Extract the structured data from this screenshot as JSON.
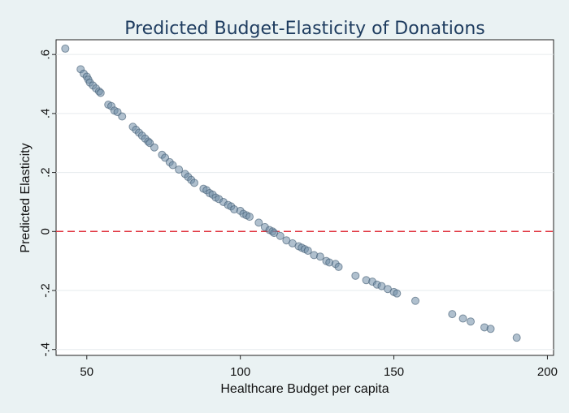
{
  "chart_data": {
    "type": "scatter",
    "title": "Predicted Budget-Elasticity of Donations",
    "xlabel": "Healthcare Budget per capita",
    "ylabel": "Predicted Elasticity",
    "xlim": [
      40,
      202
    ],
    "ylim": [
      -0.42,
      0.65
    ],
    "x_ticks": [
      50,
      100,
      150,
      200
    ],
    "x_tick_labels": [
      "50",
      "100",
      "150",
      "200"
    ],
    "y_ticks": [
      -0.4,
      -0.2,
      0,
      0.2,
      0.4,
      0.6
    ],
    "y_tick_labels": [
      "-.4",
      "-.2",
      "0",
      ".2",
      ".4",
      ".6"
    ],
    "grid": "horizontal",
    "reference_line": {
      "y": 0,
      "style": "dashed",
      "color": "#e0323c"
    },
    "colors": {
      "background": "#eaf2f3",
      "plot_area": "#ffffff",
      "marker": "#6f8ca6",
      "marker_edge": "#3d5870",
      "title": "#1e3c5f"
    },
    "points": [
      [
        43,
        0.62
      ],
      [
        48,
        0.55
      ],
      [
        49,
        0.535
      ],
      [
        50,
        0.525
      ],
      [
        50.5,
        0.515
      ],
      [
        51,
        0.505
      ],
      [
        52,
        0.495
      ],
      [
        53,
        0.485
      ],
      [
        54,
        0.475
      ],
      [
        54.5,
        0.47
      ],
      [
        57,
        0.43
      ],
      [
        58,
        0.425
      ],
      [
        59,
        0.41
      ],
      [
        60,
        0.405
      ],
      [
        61.5,
        0.39
      ],
      [
        65,
        0.355
      ],
      [
        66,
        0.345
      ],
      [
        67,
        0.335
      ],
      [
        68,
        0.325
      ],
      [
        69,
        0.315
      ],
      [
        70,
        0.305
      ],
      [
        70.5,
        0.3
      ],
      [
        72,
        0.285
      ],
      [
        74.5,
        0.26
      ],
      [
        75.5,
        0.25
      ],
      [
        77,
        0.235
      ],
      [
        78,
        0.225
      ],
      [
        80,
        0.21
      ],
      [
        82,
        0.195
      ],
      [
        83,
        0.185
      ],
      [
        84,
        0.175
      ],
      [
        85,
        0.165
      ],
      [
        88,
        0.145
      ],
      [
        89,
        0.14
      ],
      [
        90,
        0.13
      ],
      [
        91,
        0.125
      ],
      [
        92,
        0.115
      ],
      [
        93,
        0.11
      ],
      [
        94.5,
        0.1
      ],
      [
        96,
        0.09
      ],
      [
        97,
        0.085
      ],
      [
        98,
        0.075
      ],
      [
        100,
        0.07
      ],
      [
        101,
        0.06
      ],
      [
        102,
        0.055
      ],
      [
        103,
        0.05
      ],
      [
        106,
        0.03
      ],
      [
        108,
        0.015
      ],
      [
        109.5,
        0.005
      ],
      [
        110.5,
        0.0
      ],
      [
        111,
        -0.005
      ],
      [
        113,
        -0.015
      ],
      [
        115,
        -0.03
      ],
      [
        117,
        -0.04
      ],
      [
        119,
        -0.05
      ],
      [
        120,
        -0.055
      ],
      [
        121,
        -0.06
      ],
      [
        122,
        -0.065
      ],
      [
        124,
        -0.08
      ],
      [
        126,
        -0.085
      ],
      [
        128,
        -0.1
      ],
      [
        129,
        -0.105
      ],
      [
        131,
        -0.11
      ],
      [
        132,
        -0.12
      ],
      [
        137.5,
        -0.15
      ],
      [
        141,
        -0.165
      ],
      [
        143,
        -0.17
      ],
      [
        144.5,
        -0.18
      ],
      [
        146,
        -0.185
      ],
      [
        148,
        -0.195
      ],
      [
        150,
        -0.205
      ],
      [
        151,
        -0.21
      ],
      [
        157,
        -0.235
      ],
      [
        169,
        -0.28
      ],
      [
        172.5,
        -0.295
      ],
      [
        175,
        -0.305
      ],
      [
        179.5,
        -0.325
      ],
      [
        181.5,
        -0.33
      ],
      [
        190,
        -0.36
      ]
    ]
  }
}
